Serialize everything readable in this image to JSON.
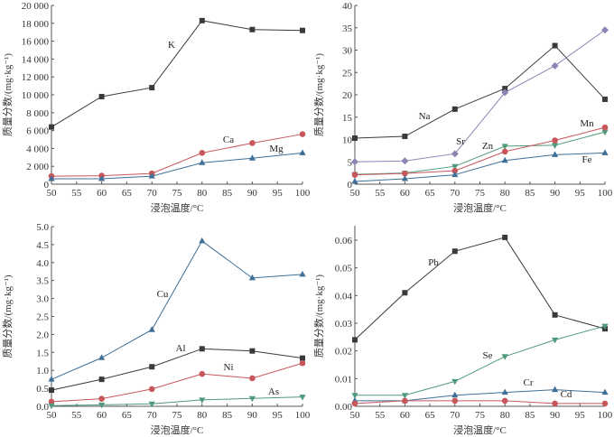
{
  "chart_data": [
    {
      "type": "line",
      "xlabel": "浸泡温度/°C",
      "ylabel": "质量分数/(mg·kg⁻¹)",
      "x": [
        50,
        60,
        70,
        80,
        90,
        100
      ],
      "xlim": [
        50,
        100
      ],
      "ylim": [
        0,
        20000
      ],
      "xticks": [
        "50",
        "55",
        "60",
        "65",
        "70",
        "75",
        "80",
        "85",
        "90",
        "95",
        "100"
      ],
      "yticks": [
        "0",
        "2 000",
        "4 000",
        "6 000",
        "8 000",
        "10 000",
        "12 000",
        "14 000",
        "16 000",
        "18 000",
        "20 000"
      ],
      "series": [
        {
          "name": "K",
          "color": "#3a3a3a",
          "marker": "square",
          "values": [
            6400,
            9800,
            10800,
            18300,
            17300,
            17200
          ]
        },
        {
          "name": "Ca",
          "color": "#c8575c",
          "marker": "circle",
          "values": [
            900,
            950,
            1200,
            3500,
            4600,
            5600
          ]
        },
        {
          "name": "Mg",
          "color": "#3f6f96",
          "marker": "triangle",
          "values": [
            600,
            600,
            900,
            2400,
            2900,
            3500
          ]
        }
      ]
    },
    {
      "type": "line",
      "xlabel": "浸泡温度/°C",
      "ylabel": "质量分数/(mg·kg⁻¹)",
      "x": [
        50,
        60,
        70,
        80,
        90,
        100
      ],
      "xlim": [
        50,
        100
      ],
      "ylim": [
        0,
        40
      ],
      "xticks": [
        "50",
        "55",
        "60",
        "65",
        "70",
        "75",
        "80",
        "85",
        "90",
        "95",
        "100"
      ],
      "yticks": [
        "0",
        "5",
        "10",
        "15",
        "20",
        "25",
        "30",
        "35",
        "40"
      ],
      "series": [
        {
          "name": "Na",
          "color": "#3a3a3a",
          "marker": "square",
          "values": [
            10.3,
            10.7,
            16.8,
            21.4,
            31,
            19
          ]
        },
        {
          "name": "Sr",
          "color": "#8a86b3",
          "marker": "diamond",
          "values": [
            5,
            5.2,
            6.8,
            20.5,
            26.5,
            34.5
          ]
        },
        {
          "name": "Zn",
          "color": "#4f9a7a",
          "marker": "triangle-down",
          "values": [
            2.2,
            2.5,
            4,
            8.5,
            8.7,
            11.7
          ]
        },
        {
          "name": "Mn",
          "color": "#c8575c",
          "marker": "circle",
          "values": [
            2.1,
            2.4,
            3,
            7.3,
            9.8,
            12.7
          ]
        },
        {
          "name": "Fe",
          "color": "#3f6f96",
          "marker": "triangle",
          "values": [
            0.6,
            1.2,
            2.1,
            5.3,
            6.6,
            7
          ]
        }
      ]
    },
    {
      "type": "line",
      "xlabel": "浸泡温度/°C",
      "ylabel": "质量分数/(mg·kg⁻¹)",
      "x": [
        50,
        60,
        70,
        80,
        90,
        100
      ],
      "xlim": [
        50,
        100
      ],
      "ylim": [
        0,
        5
      ],
      "xticks": [
        "50",
        "55",
        "60",
        "65",
        "70",
        "75",
        "80",
        "85",
        "90",
        "95",
        "100"
      ],
      "yticks": [
        "0.0",
        "0.5",
        "1.0",
        "1.5",
        "2.0",
        "2.5",
        "3.0",
        "3.5",
        "4.0",
        "4.5",
        "5.0"
      ],
      "series": [
        {
          "name": "Cu",
          "color": "#3f6f96",
          "marker": "triangle",
          "values": [
            0.75,
            1.35,
            2.13,
            4.6,
            3.57,
            3.67
          ]
        },
        {
          "name": "Al",
          "color": "#3a3a3a",
          "marker": "square",
          "values": [
            0.45,
            0.75,
            1.1,
            1.6,
            1.54,
            1.34
          ]
        },
        {
          "name": "Ni",
          "color": "#c8575c",
          "marker": "circle",
          "values": [
            0.13,
            0.21,
            0.48,
            0.9,
            0.78,
            1.2
          ]
        },
        {
          "name": "As",
          "color": "#4f9a7a",
          "marker": "triangle-down",
          "values": [
            0.02,
            0.04,
            0.07,
            0.18,
            0.22,
            0.26
          ]
        }
      ]
    },
    {
      "type": "line",
      "xlabel": "浸泡温度/°C",
      "ylabel": "质量分数/(mg·kg⁻¹)",
      "x": [
        50,
        60,
        70,
        80,
        90,
        100
      ],
      "xlim": [
        50,
        100
      ],
      "ylim": [
        0,
        0.065
      ],
      "xticks": [
        "50",
        "55",
        "60",
        "65",
        "70",
        "75",
        "80",
        "85",
        "90",
        "95",
        "100"
      ],
      "yticks": [
        "0.00",
        "0.01",
        "0.02",
        "0.03",
        "0.04",
        "0.05",
        "0.06"
      ],
      "series": [
        {
          "name": "Pb",
          "color": "#3a3a3a",
          "marker": "square",
          "values": [
            0.024,
            0.041,
            0.056,
            0.061,
            0.033,
            0.028
          ]
        },
        {
          "name": "Se",
          "color": "#4f9a7a",
          "marker": "triangle-down",
          "values": [
            0.004,
            0.004,
            0.009,
            0.018,
            0.024,
            0.029
          ]
        },
        {
          "name": "Cr",
          "color": "#3f6f96",
          "marker": "triangle",
          "values": [
            0.002,
            0.002,
            0.004,
            0.005,
            0.006,
            0.005
          ]
        },
        {
          "name": "Cd",
          "color": "#c8575c",
          "marker": "circle",
          "values": [
            0.001,
            0.002,
            0.002,
            0.002,
            0.001,
            0.001
          ]
        }
      ]
    }
  ]
}
